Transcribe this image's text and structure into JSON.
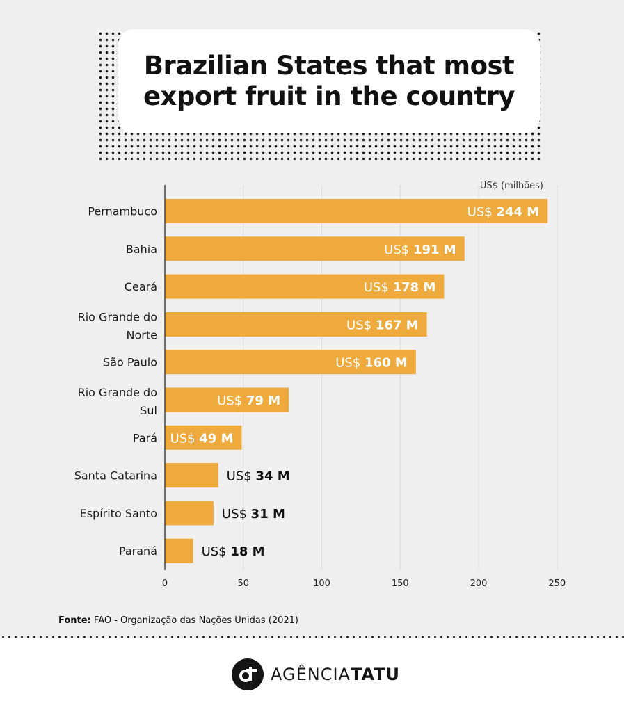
{
  "header": {
    "title_line1": "Brazilian States that most",
    "title_line2": "export fruit in the country"
  },
  "chart_data": {
    "type": "bar",
    "orientation": "horizontal",
    "categories": [
      [
        "Pernambuco"
      ],
      [
        "Bahia"
      ],
      [
        "Ceará"
      ],
      [
        "Rio Grande do",
        "Norte"
      ],
      [
        "São Paulo"
      ],
      [
        "Rio Grande do",
        "Sul"
      ],
      [
        "Pará"
      ],
      [
        "Santa Catarina"
      ],
      [
        "Espírito Santo"
      ],
      [
        "Paraná"
      ]
    ],
    "values": [
      244,
      191,
      178,
      167,
      160,
      79,
      49,
      34,
      31,
      18
    ],
    "value_labels": [
      "244 M",
      "191 M",
      "178 M",
      "167 M",
      "160 M",
      "79 M",
      "49 M",
      "34 M",
      "31 M",
      "18 M"
    ],
    "label_prefix": "US$",
    "unit_label": "US$ (milhões)",
    "xlim": [
      0,
      250
    ],
    "xticks": [
      0,
      50,
      100,
      150,
      200,
      250
    ],
    "grid": true,
    "bar_color": "#eeaa3c"
  },
  "source": {
    "label": "Fonte:",
    "text": "FAO - Organização das Nações Unidas (2021)"
  },
  "brand": {
    "name_light": "AGÊNCIA",
    "name_bold": "TATU"
  },
  "colors": {
    "background": "#efefef",
    "bar": "#eeaa3c",
    "text": "#111111"
  }
}
